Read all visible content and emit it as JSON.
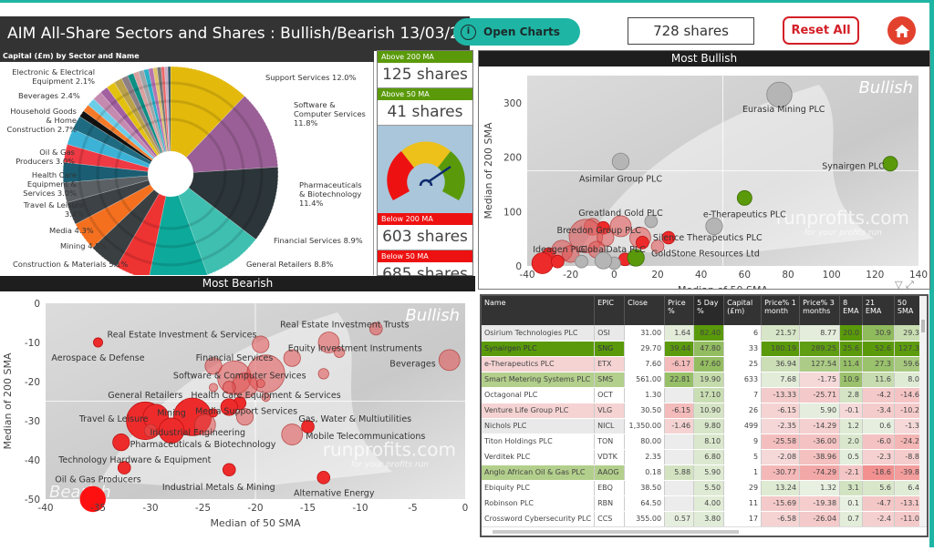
{
  "header": {
    "title": "AIM All-Share Sectors and Shares : Bullish/Bearish 13/03/2020 07:33",
    "open_charts_label": "Open Charts",
    "share_count": "728 shares",
    "reset_label": "Reset All"
  },
  "colors": {
    "accent": "#1fb5a4",
    "bull": "#5a9a0a",
    "bear": "#ee1111",
    "reset": "#d32027"
  },
  "kpis": [
    {
      "label": "Above 200 MA",
      "value": "125 shares",
      "tone": "green"
    },
    {
      "label": "Above 50 MA",
      "value": "41 shares",
      "tone": "green"
    },
    {
      "label": "Below 200 MA",
      "value": "603 shares",
      "tone": "red"
    },
    {
      "label": "Below 50 MA",
      "value": "685 shares",
      "tone": "red"
    }
  ],
  "gauge": {
    "needle_fraction": 0.78
  },
  "chart_data": [
    {
      "type": "pie",
      "title": "Capital (£m) by Sector and Name",
      "slices": [
        {
          "name": "Support Services",
          "label": "Support Services 12.0%",
          "value": 12.0,
          "color": "#e3b90c"
        },
        {
          "name": "Software & Computer Services",
          "label": "Software & Computer Services 11.8%",
          "value": 11.8,
          "color": "#9a5f96"
        },
        {
          "name": "Pharmaceuticals & Biotechnology",
          "label": "Pharmaceuticals & Biotechnology 11.4%",
          "value": 11.4,
          "color": "#2c3539"
        },
        {
          "name": "Financial Services",
          "label": "Financial Services 8.9%",
          "value": 8.9,
          "color": "#3ebfb0"
        },
        {
          "name": "General Retailers",
          "label": "General Retailers 8.8%",
          "value": 8.8,
          "color": "#0da99b"
        },
        {
          "name": "Construction & Materials",
          "label": "Construction & Materials 5.1%",
          "value": 5.1,
          "color": "#ee3333"
        },
        {
          "name": "Mining",
          "label": "Mining 4.5%",
          "value": 4.5,
          "color": "#3a3f42"
        },
        {
          "name": "Media",
          "label": "Media 4.3%",
          "value": 4.3,
          "color": "#f4701f"
        },
        {
          "name": "Travel & Leisure",
          "label": "Travel & Leisure 3.4%",
          "value": 3.4,
          "color": "#3c4246"
        },
        {
          "name": "Health Care Equipment & Services",
          "label": "Health Care Equipment & Services 3.0%",
          "value": 3.0,
          "color": "#5b6064"
        },
        {
          "name": "Oil & Gas Producers",
          "label": "Oil & Gas Producers 3.0%",
          "value": 3.0,
          "color": "#1b5e73"
        },
        {
          "name": "Household Goods & Home Construction",
          "label": "Household Goods & Home Construction 2.7%",
          "value": 2.7,
          "color": "#ee3a44"
        },
        {
          "name": "Beverages",
          "label": "Beverages 2.4%",
          "value": 2.4,
          "color": "#3bb2d6"
        },
        {
          "name": "Electronic & Electrical Equipment",
          "label": "Electronic & Electrical Equipment 2.1%",
          "value": 2.1,
          "color": "#1e6a80"
        }
      ],
      "unlabeled_slices": [
        {
          "value": 1.0,
          "color": "#111111"
        },
        {
          "value": 1.1,
          "color": "#f47a2a"
        },
        {
          "value": 1.2,
          "color": "#6ccde8"
        },
        {
          "value": 1.4,
          "color": "#c58ab0"
        },
        {
          "value": 1.2,
          "color": "#a360a0"
        },
        {
          "value": 1.3,
          "color": "#e3c10f"
        },
        {
          "value": 1.2,
          "color": "#bba24a"
        },
        {
          "value": 1.0,
          "color": "#8d7f86"
        },
        {
          "value": 0.9,
          "color": "#0d8f85"
        },
        {
          "value": 0.8,
          "color": "#d9a0a0"
        },
        {
          "value": 0.8,
          "color": "#9fa5a8"
        },
        {
          "value": 0.7,
          "color": "#2ab0c8"
        },
        {
          "value": 0.7,
          "color": "#b574b0"
        },
        {
          "value": 0.6,
          "color": "#e0c36a"
        },
        {
          "value": 0.6,
          "color": "#777777"
        },
        {
          "value": 0.5,
          "color": "#ee6a6a"
        },
        {
          "value": 0.5,
          "color": "#c8b0c8"
        },
        {
          "value": 0.4,
          "color": "#335566"
        }
      ]
    },
    {
      "type": "scatter",
      "title": "Most Bullish",
      "xlabel": "Median of 50 SMA",
      "ylabel": "Median of 200 SMA",
      "xlim": [
        -40,
        140
      ],
      "ylim": [
        0,
        350
      ],
      "xticks": [
        -40,
        -20,
        0,
        20,
        40,
        60,
        80,
        100,
        120,
        140
      ],
      "yticks": [
        0,
        100,
        200,
        300
      ],
      "watermark": "Bullish",
      "site": "runprofits.com",
      "tagline": "for your profits run",
      "points": [
        {
          "x": 76,
          "y": 315,
          "s": 6,
          "c": "grey"
        },
        {
          "x": 3,
          "y": 192,
          "s": 4,
          "c": "grey"
        },
        {
          "x": 127,
          "y": 188,
          "s": 3.5,
          "c": "green"
        },
        {
          "x": 60,
          "y": 125,
          "s": 3.5,
          "c": "green"
        },
        {
          "x": 17,
          "y": 82,
          "s": 3,
          "c": "grey"
        },
        {
          "x": 46,
          "y": 73,
          "s": 4,
          "c": "grey"
        },
        {
          "x": 25,
          "y": 52,
          "s": 3,
          "c": "red"
        },
        {
          "x": -10,
          "y": 72,
          "s": 4,
          "c": "pink"
        },
        {
          "x": -5,
          "y": 70,
          "s": 3,
          "c": "red"
        },
        {
          "x": 3,
          "y": 73,
          "s": 5,
          "c": "pink"
        },
        {
          "x": -13,
          "y": 55,
          "s": 8,
          "c": "pink"
        },
        {
          "x": -4,
          "y": 52,
          "s": 4,
          "c": "pink"
        },
        {
          "x": 12,
          "y": 52,
          "s": 5,
          "c": "pink"
        },
        {
          "x": 13,
          "y": 43,
          "s": 3,
          "c": "red"
        },
        {
          "x": 20,
          "y": 36,
          "s": 3,
          "c": "pink"
        },
        {
          "x": -30,
          "y": 22,
          "s": 3,
          "c": "red"
        },
        {
          "x": -24,
          "y": 28,
          "s": 5,
          "c": "pink"
        },
        {
          "x": -20,
          "y": 22,
          "s": 4,
          "c": "pink"
        },
        {
          "x": -33,
          "y": 5,
          "s": 5,
          "c": "red"
        },
        {
          "x": -26,
          "y": 8,
          "s": 3,
          "c": "red"
        },
        {
          "x": -8,
          "y": 30,
          "s": 4,
          "c": "pink"
        },
        {
          "x": 5,
          "y": 12,
          "s": 3,
          "c": "red"
        },
        {
          "x": 10,
          "y": 15,
          "s": 4,
          "c": "green"
        },
        {
          "x": -15,
          "y": 8,
          "s": 3,
          "c": "grey"
        },
        {
          "x": 0,
          "y": 5,
          "s": 3,
          "c": "grey"
        },
        {
          "x": -5,
          "y": 10,
          "s": 4,
          "c": "grey"
        }
      ],
      "labels": [
        {
          "text": "Eurasia Mining PLC",
          "x": 78,
          "y": 288
        },
        {
          "text": "Asimilar Group PLC",
          "x": 3,
          "y": 160
        },
        {
          "text": "Synairgen PLC",
          "x": 110,
          "y": 183
        },
        {
          "text": "e-Therapeutics PLC",
          "x": 60,
          "y": 95
        },
        {
          "text": "Greatland Gold PLC",
          "x": 3,
          "y": 97
        },
        {
          "text": "Breedon Group PLC",
          "x": -7,
          "y": 65
        },
        {
          "text": "Silence Therapeutics PLC",
          "x": 43,
          "y": 52
        },
        {
          "text": "GoldStone Resources Ltd",
          "x": 42,
          "y": 23
        },
        {
          "text": "Ideagen PLC",
          "x": -25,
          "y": 30
        },
        {
          "text": "GlobalData PLC",
          "x": -1,
          "y": 30
        }
      ]
    },
    {
      "type": "scatter",
      "title": "Most Bearish",
      "xlabel": "Median of 50 SMA",
      "ylabel": "Median of 200 SMA",
      "xlim": [
        -40,
        0
      ],
      "ylim": [
        -50,
        0
      ],
      "xticks": [
        -40,
        -35,
        -30,
        -25,
        -20,
        -15,
        -10,
        -5,
        0
      ],
      "yticks": [
        0,
        -10,
        -20,
        -30,
        -40,
        -50
      ],
      "watermark": "Bullish",
      "watermark_bottom": "Bearish",
      "site": "runprofits.com",
      "tagline": "for your profits run",
      "points": [
        {
          "x": -35,
          "y": -10,
          "s": 2.2,
          "c": "red"
        },
        {
          "x": -19.5,
          "y": -10.5,
          "s": 4,
          "c": "pink"
        },
        {
          "x": -8.5,
          "y": -6.5,
          "s": 3,
          "c": "pink"
        },
        {
          "x": -13,
          "y": -10,
          "s": 5,
          "c": "pink"
        },
        {
          "x": -12,
          "y": -12.5,
          "s": 2.5,
          "c": "pink"
        },
        {
          "x": -16.5,
          "y": -14,
          "s": 4,
          "c": "pink"
        },
        {
          "x": -1.5,
          "y": -14.5,
          "s": 5,
          "c": "pink"
        },
        {
          "x": -13.5,
          "y": -18,
          "s": 2.5,
          "c": "pink"
        },
        {
          "x": -24,
          "y": -16,
          "s": 4,
          "c": "pink"
        },
        {
          "x": -22,
          "y": -19,
          "s": 8,
          "c": "pink"
        },
        {
          "x": -19,
          "y": -18,
          "s": 9,
          "c": "pink"
        },
        {
          "x": -21,
          "y": -21,
          "s": 6,
          "c": "pink"
        },
        {
          "x": -19.5,
          "y": -20.5,
          "s": 2,
          "c": "pink"
        },
        {
          "x": -22.5,
          "y": -21.5,
          "s": 3,
          "c": "pink"
        },
        {
          "x": -24,
          "y": -21.5,
          "s": 2,
          "c": "pink"
        },
        {
          "x": -19,
          "y": -24,
          "s": 2,
          "c": "pink"
        },
        {
          "x": -21.5,
          "y": -25.5,
          "s": 3,
          "c": "red"
        },
        {
          "x": -22.5,
          "y": -26.5,
          "s": 4,
          "c": "red"
        },
        {
          "x": -21,
          "y": -29,
          "s": 4,
          "c": "pink"
        },
        {
          "x": -30.5,
          "y": -30,
          "s": 9,
          "c": "red"
        },
        {
          "x": -29.5,
          "y": -29,
          "s": 6,
          "c": "red"
        },
        {
          "x": -26,
          "y": -29,
          "s": 9,
          "c": "red"
        },
        {
          "x": -24.8,
          "y": -31,
          "s": 5,
          "c": "pink"
        },
        {
          "x": -24,
          "y": -28,
          "s": 2,
          "c": "red"
        },
        {
          "x": -28,
          "y": -32.5,
          "s": 6,
          "c": "red"
        },
        {
          "x": -30,
          "y": -32.5,
          "s": 3,
          "c": "pink"
        },
        {
          "x": -16.5,
          "y": -33.5,
          "s": 5,
          "c": "pink"
        },
        {
          "x": -15,
          "y": -31.5,
          "s": 3,
          "c": "red"
        },
        {
          "x": -32.8,
          "y": -35.5,
          "s": 4,
          "c": "red"
        },
        {
          "x": -32.5,
          "y": -42,
          "s": 3,
          "c": "red"
        },
        {
          "x": -22.5,
          "y": -42.5,
          "s": 3,
          "c": "red"
        },
        {
          "x": -13.5,
          "y": -44.5,
          "s": 3,
          "c": "red"
        },
        {
          "x": -35.5,
          "y": -50,
          "s": 6,
          "c": "bright"
        }
      ],
      "labels": [
        {
          "text": "Real Estate Investment Trusts",
          "x": -11.5,
          "y": -5.5
        },
        {
          "text": "Real Estate Investment & Services",
          "x": -27,
          "y": -8
        },
        {
          "text": "Equity Investment Instruments",
          "x": -10.5,
          "y": -11.5
        },
        {
          "text": "Aerospace & Defense",
          "x": -35,
          "y": -14
        },
        {
          "text": "Financial Services",
          "x": -22,
          "y": -14
        },
        {
          "text": "Beverages",
          "x": -5,
          "y": -15.5
        },
        {
          "text": "Software & Computer Services",
          "x": -21.5,
          "y": -18.5
        },
        {
          "text": "General Retailers",
          "x": -30.5,
          "y": -23.5
        },
        {
          "text": "Health Care Equipment & Services",
          "x": -19,
          "y": -23.5
        },
        {
          "text": "Media",
          "x": -24.5,
          "y": -27.5
        },
        {
          "text": "Support Services",
          "x": -19.5,
          "y": -27.5
        },
        {
          "text": "Mining",
          "x": -28,
          "y": -28
        },
        {
          "text": "Travel & Leisure",
          "x": -33.5,
          "y": -29.5
        },
        {
          "text": "Gas, Water & Multiutilities",
          "x": -10.5,
          "y": -29.5
        },
        {
          "text": "Industrial Engineering",
          "x": -25.5,
          "y": -33
        },
        {
          "text": "Mobile Telecommunications",
          "x": -9.5,
          "y": -34
        },
        {
          "text": "Pharmaceuticals & Biotechnology",
          "x": -25,
          "y": -36
        },
        {
          "text": "Technology Hardware & Equipment",
          "x": -31.5,
          "y": -40
        },
        {
          "text": "Oil & Gas Producers",
          "x": -35,
          "y": -45
        },
        {
          "text": "Industrial Metals & Mining",
          "x": -23.5,
          "y": -47
        },
        {
          "text": "Alternative Energy",
          "x": -12.5,
          "y": -48.5
        }
      ]
    }
  ],
  "table": {
    "columns": [
      "Name",
      "EPIC",
      "Close",
      "Price %",
      "5 Day %",
      "Capital (£m)",
      "Price% 1 month",
      "Price% 3 months",
      "8 EMA",
      "21 EMA",
      "50 SMA"
    ],
    "rows": [
      {
        "status": "grey",
        "cells": [
          "Osirium Technologies PLC",
          "OSI",
          "31.00",
          "1.64",
          "82.40",
          "6",
          "21.57",
          "8.77",
          "20.0",
          "30.9",
          "29.3"
        ]
      },
      {
        "status": "green",
        "cells": [
          "Synairgen PLC",
          "SNG",
          "29.70",
          "39.44",
          "47.80",
          "33",
          "180.19",
          "289.25",
          "25.6",
          "52.6",
          "127.3"
        ]
      },
      {
        "status": "pink",
        "cells": [
          "e-Therapeutics PLC",
          "ETX",
          "7.60",
          "-6.17",
          "47.60",
          "25",
          "36.94",
          "127.54",
          "11.4",
          "27.3",
          "59.6"
        ]
      },
      {
        "status": "lightgreen",
        "cells": [
          "Smart Metering Systems PLC",
          "SMS",
          "561.00",
          "22.81",
          "19.90",
          "633",
          "7.68",
          "-1.75",
          "10.9",
          "11.6",
          "8.0"
        ]
      },
      {
        "status": "white",
        "cells": [
          "Octagonal PLC",
          "OCT",
          "1.30",
          "",
          "17.10",
          "7",
          "-13.33",
          "-25.71",
          "2.8",
          "-4.2",
          "-14.6"
        ]
      },
      {
        "status": "pink",
        "cells": [
          "Venture Life Group PLC",
          "VLG",
          "30.50",
          "-6.15",
          "10.90",
          "26",
          "-6.15",
          "5.90",
          "-0.1",
          "-3.4",
          "-10.2"
        ]
      },
      {
        "status": "grey",
        "cells": [
          "Nichols PLC",
          "NICL",
          "1,350.00",
          "-1.46",
          "9.80",
          "499",
          "-2.35",
          "-14.29",
          "1.2",
          "0.6",
          "-1.3"
        ]
      },
      {
        "status": "white",
        "cells": [
          "Titon Holdings PLC",
          "TON",
          "80.00",
          "",
          "8.10",
          "9",
          "-25.58",
          "-36.00",
          "2.0",
          "-6.0",
          "-24.2"
        ]
      },
      {
        "status": "white",
        "cells": [
          "Verditek PLC",
          "VDTK",
          "2.35",
          "",
          "6.80",
          "5",
          "-2.08",
          "-38.96",
          "0.5",
          "-2.3",
          "-8.8"
        ]
      },
      {
        "status": "lightgreen",
        "cells": [
          "Anglo African Oil & Gas PLC",
          "AAOG",
          "0.18",
          "5.88",
          "5.90",
          "1",
          "-30.77",
          "-74.29",
          "-2.1",
          "-18.6",
          "-39.8"
        ]
      },
      {
        "status": "white",
        "cells": [
          "Ebiquity PLC",
          "EBQ",
          "38.50",
          "",
          "5.50",
          "29",
          "13.24",
          "1.32",
          "3.1",
          "5.6",
          "6.4"
        ]
      },
      {
        "status": "white",
        "cells": [
          "Robinson PLC",
          "RBN",
          "64.50",
          "",
          "4.00",
          "11",
          "-15.69",
          "-19.38",
          "0.1",
          "-4.7",
          "-13.1"
        ]
      },
      {
        "status": "white",
        "cells": [
          "Crossword Cybersecurity PLC",
          "CCS",
          "355.00",
          "0.57",
          "3.80",
          "17",
          "-6.58",
          "-26.04",
          "0.7",
          "-2.4",
          "-11.0"
        ]
      }
    ]
  }
}
